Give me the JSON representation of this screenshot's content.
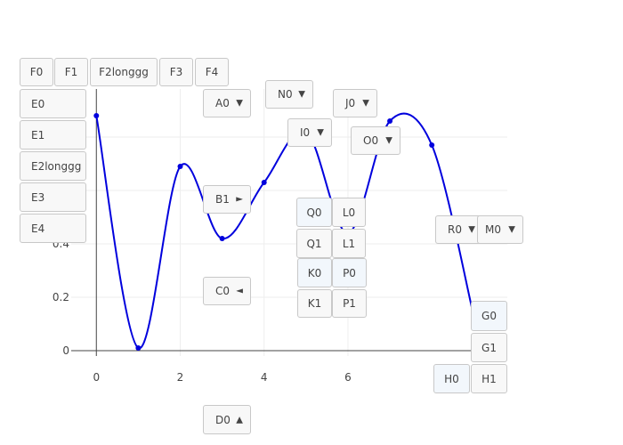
{
  "chart_data": {
    "type": "line",
    "x": [
      0,
      1,
      2,
      3,
      4,
      5,
      6,
      7,
      8,
      9
    ],
    "y": [
      0.88,
      0.01,
      0.69,
      0.42,
      0.63,
      0.82,
      0.44,
      0.86,
      0.77,
      0.13
    ],
    "xticks": [
      0,
      2,
      4,
      6
    ],
    "yticks": [
      0,
      0.2,
      0.4
    ],
    "xlim": [
      -0.6,
      9.8
    ],
    "ylim": [
      -0.02,
      0.98
    ],
    "line_color": "#0000dd",
    "grid": true,
    "line_shape": "spline"
  },
  "buttons": [
    {
      "id": "F0",
      "label": "F0"
    },
    {
      "id": "F1",
      "label": "F1"
    },
    {
      "id": "F2",
      "label": "F2longgg"
    },
    {
      "id": "F3",
      "label": "F3"
    },
    {
      "id": "F4",
      "label": "F4"
    },
    {
      "id": "E0",
      "label": "E0"
    },
    {
      "id": "E1",
      "label": "E1"
    },
    {
      "id": "E2",
      "label": "E2longgg"
    },
    {
      "id": "E3",
      "label": "E3"
    },
    {
      "id": "E4",
      "label": "E4"
    },
    {
      "id": "Q0",
      "label": "Q0"
    },
    {
      "id": "L0",
      "label": "L0"
    },
    {
      "id": "Q1",
      "label": "Q1"
    },
    {
      "id": "L1",
      "label": "L1"
    },
    {
      "id": "K0",
      "label": "K0"
    },
    {
      "id": "P0",
      "label": "P0"
    },
    {
      "id": "K1",
      "label": "K1"
    },
    {
      "id": "P1",
      "label": "P1"
    },
    {
      "id": "G0",
      "label": "G0"
    },
    {
      "id": "G1",
      "label": "G1"
    },
    {
      "id": "H0",
      "label": "H0"
    },
    {
      "id": "H1",
      "label": "H1"
    }
  ],
  "dropdowns": [
    {
      "id": "A0",
      "label": "A0",
      "arrow": "▼"
    },
    {
      "id": "N0",
      "label": "N0",
      "arrow": "▼"
    },
    {
      "id": "J0",
      "label": "J0",
      "arrow": "▼"
    },
    {
      "id": "I0",
      "label": "I0",
      "arrow": "▼"
    },
    {
      "id": "O0",
      "label": "O0",
      "arrow": "▼"
    },
    {
      "id": "B1",
      "label": "B1",
      "arrow": "►"
    },
    {
      "id": "R0",
      "label": "R0",
      "arrow": "▼"
    },
    {
      "id": "M0",
      "label": "M0",
      "arrow": "▼"
    },
    {
      "id": "C0",
      "label": "C0",
      "arrow": "◄"
    },
    {
      "id": "D0",
      "label": "D0",
      "arrow": "▲"
    }
  ]
}
